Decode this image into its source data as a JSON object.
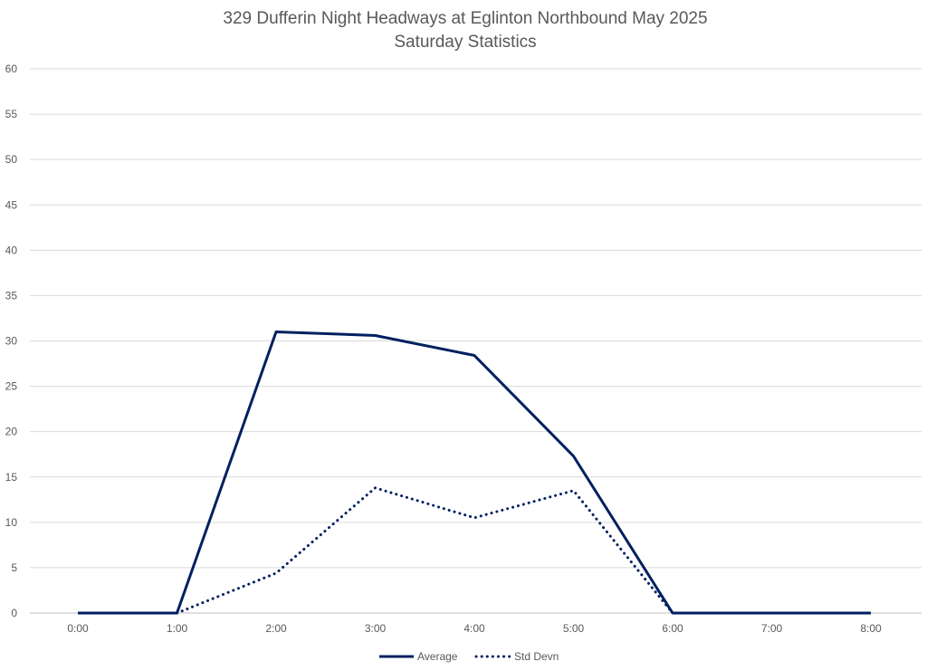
{
  "chart_data": {
    "type": "line",
    "title": "329 Dufferin Night Headways at Eglinton Northbound May 2025",
    "subtitle": "Saturday Statistics",
    "x": [
      "0:00",
      "1:00",
      "2:00",
      "3:00",
      "4:00",
      "5:00",
      "6:00",
      "7:00",
      "8:00"
    ],
    "yticks": [
      "0",
      "5",
      "10",
      "15",
      "20",
      "25",
      "30",
      "35",
      "40",
      "45",
      "50",
      "55",
      "60"
    ],
    "ylim": [
      0,
      60
    ],
    "grid": true,
    "legend": "bottom",
    "series": [
      {
        "name": "Average",
        "values": [
          0,
          0,
          31.0,
          30.6,
          28.4,
          17.3,
          0,
          0,
          0
        ],
        "color": "#002060",
        "style": "solid"
      },
      {
        "name": "Std Devn",
        "values": [
          null,
          0,
          4.4,
          13.8,
          10.5,
          13.5,
          0,
          null,
          null
        ],
        "color": "#002060",
        "style": "dotted"
      }
    ]
  }
}
